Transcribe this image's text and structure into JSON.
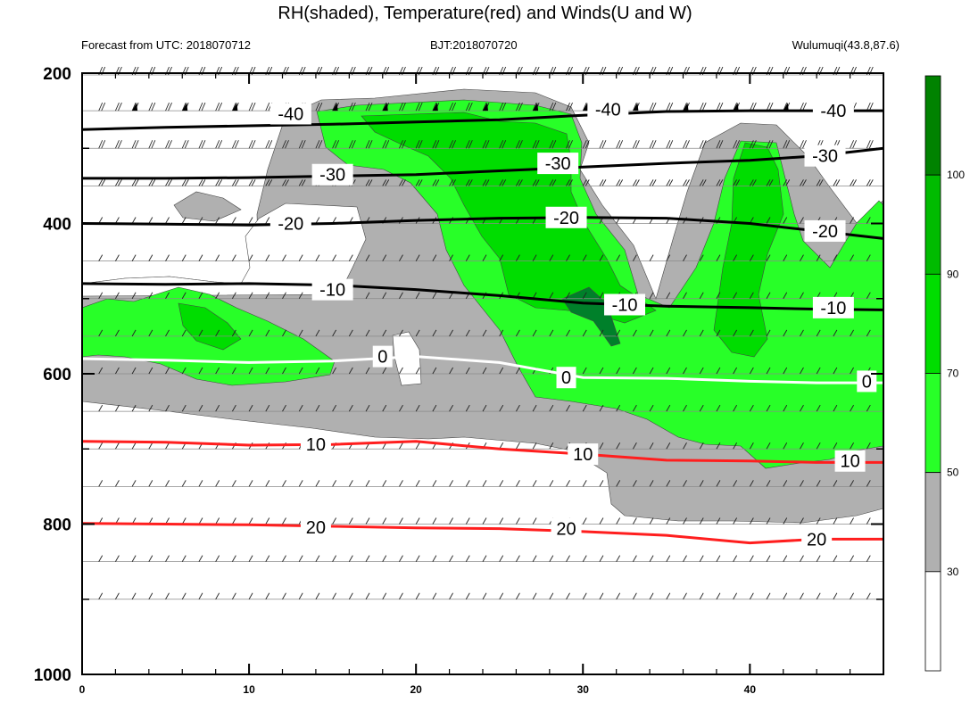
{
  "title": "RH(shaded), Temperature(red) and Winds(U and W)",
  "subtitles": {
    "left": "Forecast from UTC: 2018070712",
    "center": "BJT:2018070720",
    "right": "Wulumuqi(43.8,87.6)"
  },
  "chart_data": {
    "type": "contour",
    "x_range": [
      0,
      48
    ],
    "y_range": [
      200,
      1000
    ],
    "y_inverted": true,
    "x_ticks": [
      "0",
      "10",
      "20",
      "30",
      "40"
    ],
    "x_tick_values": [
      0,
      10,
      20,
      30,
      40
    ],
    "y_ticks": [
      "200",
      "400",
      "600",
      "800",
      "1000"
    ],
    "y_tick_values": [
      200,
      400,
      600,
      800,
      1000
    ],
    "rh_levels": [
      30,
      50,
      70,
      90,
      100
    ],
    "colorbar": {
      "labels": [
        "30",
        "50",
        "70",
        "90",
        "100"
      ],
      "colors": [
        "#ffffff",
        "#b0b0b0",
        "#28ff28",
        "#00dd00",
        "#00bb00",
        "#008200"
      ]
    },
    "colors": {
      "rh_30_50": "#b0b0b0",
      "rh_50_70": "#28ff28",
      "rh_70_90": "#00dd00",
      "rh_90_100": "#00bb00",
      "rh_100": "#00802a",
      "temperature_positive": "#ff1e1e",
      "temperature_zero": "#ffffff",
      "temperature_negative": "#000000"
    },
    "temperature_contours": [
      {
        "label": "-40",
        "points": [
          [
            0,
            275
          ],
          [
            5,
            272
          ],
          [
            10,
            270
          ],
          [
            15,
            268
          ],
          [
            20,
            265
          ],
          [
            25,
            262
          ],
          [
            30,
            256
          ],
          [
            35,
            251
          ],
          [
            40,
            250
          ],
          [
            44,
            250
          ],
          [
            48,
            250
          ]
        ]
      },
      {
        "label": "-30",
        "points": [
          [
            0,
            340
          ],
          [
            5,
            340
          ],
          [
            10,
            339
          ],
          [
            15,
            337
          ],
          [
            20,
            335
          ],
          [
            25,
            330
          ],
          [
            30,
            325
          ],
          [
            35,
            320
          ],
          [
            40,
            316
          ],
          [
            44,
            310
          ],
          [
            48,
            300
          ]
        ]
      },
      {
        "label": "-20",
        "points": [
          [
            0,
            400
          ],
          [
            5,
            401
          ],
          [
            10,
            402
          ],
          [
            15,
            400
          ],
          [
            20,
            396
          ],
          [
            25,
            393
          ],
          [
            30,
            392
          ],
          [
            35,
            393
          ],
          [
            40,
            400
          ],
          [
            44,
            410
          ],
          [
            48,
            420
          ]
        ]
      },
      {
        "label": "-10",
        "points": [
          [
            0,
            480
          ],
          [
            5,
            481
          ],
          [
            10,
            480
          ],
          [
            15,
            482
          ],
          [
            20,
            488
          ],
          [
            25,
            496
          ],
          [
            30,
            506
          ],
          [
            35,
            510
          ],
          [
            40,
            512
          ],
          [
            44,
            514
          ],
          [
            48,
            515
          ]
        ]
      },
      {
        "label": "0",
        "points": [
          [
            0,
            580
          ],
          [
            5,
            582
          ],
          [
            10,
            585
          ],
          [
            15,
            583
          ],
          [
            20,
            577
          ],
          [
            25,
            585
          ],
          [
            30,
            605
          ],
          [
            35,
            606
          ],
          [
            40,
            610
          ],
          [
            44,
            612
          ],
          [
            48,
            612
          ]
        ]
      },
      {
        "label": "10",
        "points": [
          [
            0,
            690
          ],
          [
            5,
            691
          ],
          [
            10,
            695
          ],
          [
            15,
            694
          ],
          [
            20,
            690
          ],
          [
            25,
            700
          ],
          [
            30,
            707
          ],
          [
            35,
            715
          ],
          [
            40,
            716
          ],
          [
            44,
            718
          ],
          [
            48,
            718
          ]
        ]
      },
      {
        "label": "20",
        "points": [
          [
            0,
            799
          ],
          [
            5,
            800
          ],
          [
            10,
            801
          ],
          [
            15,
            803
          ],
          [
            20,
            805
          ],
          [
            25,
            806
          ],
          [
            30,
            810
          ],
          [
            35,
            815
          ],
          [
            40,
            825
          ],
          [
            44,
            820
          ],
          [
            48,
            820
          ]
        ]
      }
    ]
  },
  "cb_labels_present": true
}
